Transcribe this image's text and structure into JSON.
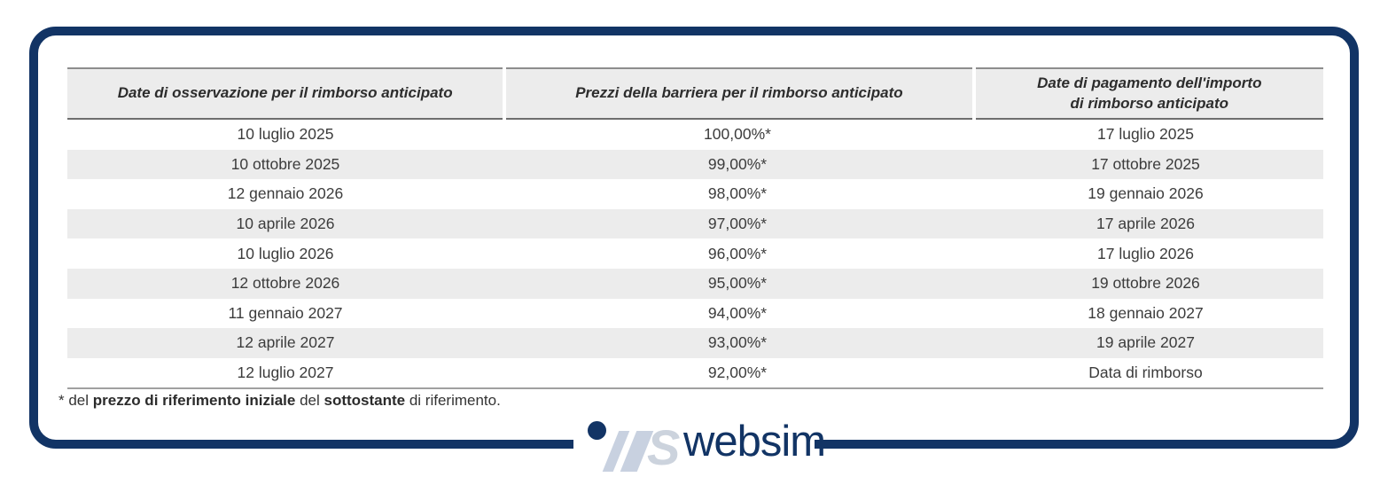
{
  "table": {
    "headers": [
      "Date di osservazione per il rimborso anticipato",
      "Prezzi della barriera per il rimborso anticipato",
      "Date di pagamento dell'importo\ndi rimborso anticipato"
    ],
    "rows": [
      [
        "10 luglio 2025",
        "100,00%*",
        "17 luglio 2025"
      ],
      [
        "10 ottobre 2025",
        "99,00%*",
        "17 ottobre 2025"
      ],
      [
        "12 gennaio 2026",
        "98,00%*",
        "19 gennaio 2026"
      ],
      [
        "10 aprile 2026",
        "97,00%*",
        "17 aprile 2026"
      ],
      [
        "10 luglio 2026",
        "96,00%*",
        "17 luglio 2026"
      ],
      [
        "12 ottobre 2026",
        "95,00%*",
        "19 ottobre 2026"
      ],
      [
        "11 gennaio 2027",
        "94,00%*",
        "18 gennaio 2027"
      ],
      [
        "12 aprile 2027",
        "93,00%*",
        "19 aprile 2027"
      ],
      [
        "12 luglio 2027",
        "92,00%*",
        "Data di rimborso"
      ]
    ]
  },
  "footnote": {
    "prefix": "* del ",
    "bold1": "prezzo di riferimento iniziale",
    "mid": " del ",
    "bold2": "sottostante",
    "suffix": " di riferimento."
  },
  "logo": {
    "text": "websim"
  },
  "colors": {
    "navy": "#123465",
    "header_bg": "#ececec",
    "stripe_bg": "#ececec",
    "header_line_top": "#8d8d8d",
    "header_line_bottom": "#6e6e6e",
    "table_bottom_line": "#a0a0a0",
    "body_text": "#3c3c3c",
    "logo_glyph_light": "#c8d1e0"
  }
}
